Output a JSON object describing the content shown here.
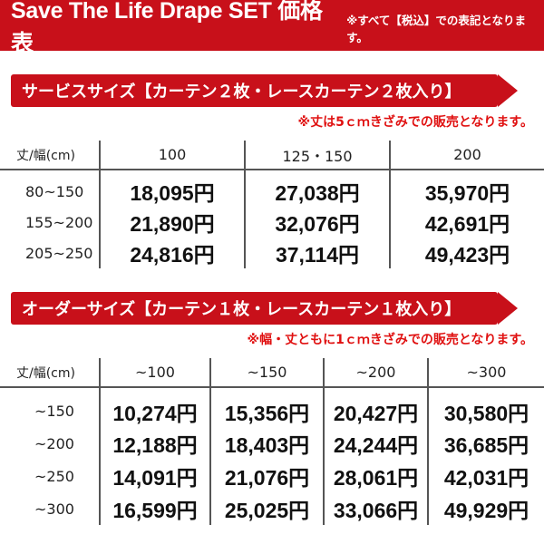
{
  "banner": {
    "title": "Save The Life Drape SET 価格表",
    "note": "※すべて【税込】での表記となります。"
  },
  "service": {
    "heading": "サービスサイズ【カーテン２枚・レースカーテン２枚入り】",
    "note": "※丈は5ｃｍきざみでの販売となります。",
    "corner": "丈/幅(cm)",
    "columns": [
      "100",
      "125・150",
      "200"
    ],
    "rows": [
      {
        "label": "80~150",
        "prices": [
          "18,095円",
          "27,038円",
          "35,970円"
        ]
      },
      {
        "label": "155~200",
        "prices": [
          "21,890円",
          "32,076円",
          "42,691円"
        ]
      },
      {
        "label": "205~250",
        "prices": [
          "24,816円",
          "37,114円",
          "49,423円"
        ]
      }
    ]
  },
  "order": {
    "heading": "オーダーサイズ【カーテン１枚・レースカーテン１枚入り】",
    "note": "※幅・丈ともに1ｃｍきざみでの販売となります。",
    "corner": "丈/幅(cm)",
    "columns": [
      "~100",
      "~150",
      "~200",
      "~300"
    ],
    "rows": [
      {
        "label": "~150",
        "prices": [
          "10,274円",
          "15,356円",
          "20,427円",
          "30,580円"
        ]
      },
      {
        "label": "~200",
        "prices": [
          "12,188円",
          "18,403円",
          "24,244円",
          "36,685円"
        ]
      },
      {
        "label": "~250",
        "prices": [
          "14,091円",
          "21,076円",
          "28,061円",
          "42,031円"
        ]
      },
      {
        "label": "~300",
        "prices": [
          "16,599円",
          "25,025円",
          "33,066円",
          "49,929円"
        ]
      }
    ]
  },
  "colors": {
    "accent": "#c8101a",
    "note_red": "#e01010"
  }
}
